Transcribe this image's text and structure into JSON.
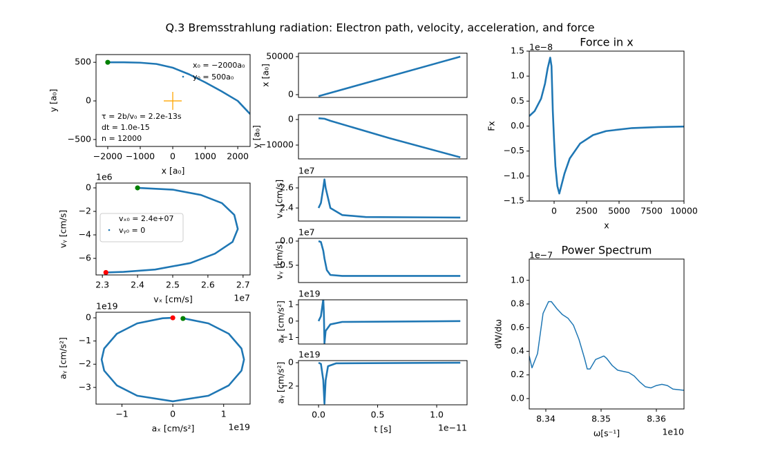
{
  "title": "Q.3 Bremsstrahlung radiation: Electron path, velocity, acceleration, and force",
  "chart_data": [
    {
      "type": "line",
      "xlabel": "x [a₀]",
      "ylabel": "y [a₀]",
      "xlim": [
        -2360,
        2380
      ],
      "ylim": [
        -590,
        600
      ],
      "xticks": [
        {
          "value": -2000,
          "label": "−2000"
        },
        {
          "value": -1000,
          "label": "−1000"
        },
        0,
        1000,
        2000
      ],
      "yticks": [
        {
          "value": -500,
          "label": "−500"
        },
        0,
        500
      ],
      "series": [
        {
          "color": "#1f77b4",
          "x": [
            -2000,
            -1500,
            -1000,
            -500,
            0,
            500,
            1000,
            1500,
            2000,
            2380
          ],
          "y": [
            500,
            500,
            495,
            478,
            430,
            345,
            240,
            125,
            0,
            -170
          ]
        }
      ],
      "points": [
        {
          "color": "#008000",
          "x": -2000,
          "y": 500
        },
        {
          "color": "#ffa500",
          "marker": "plus",
          "x": 0,
          "y": 0
        }
      ],
      "legend": [
        "x₀ = −2000a₀",
        "y₀ = 500a₀"
      ],
      "legend_loc": "upper right",
      "legend_frame": false,
      "annotations": [
        "τ = 2b/v₀ = 2.2e-13s",
        "dt = 1.0e-15",
        "n = 12000"
      ]
    },
    {
      "type": "line",
      "xlabel": "vₓ [cm/s]",
      "ylabel": "vᵧ [cm/s]",
      "x_offset": "1e7",
      "y_offset": "1e6",
      "xlim": [
        2.282,
        2.72
      ],
      "ylim": [
        -7.41,
        0.41
      ],
      "xticks": [
        2.3,
        2.4,
        2.5,
        2.6,
        2.7
      ],
      "yticks": [
        0,
        {
          "value": -2,
          "label": "−2"
        },
        {
          "value": -4,
          "label": "−4"
        },
        {
          "value": -6,
          "label": "−6"
        }
      ],
      "series": [
        {
          "color": "#1f77b4",
          "x": [
            2.4,
            2.5,
            2.58,
            2.64,
            2.675,
            2.685,
            2.67,
            2.62,
            2.55,
            2.45,
            2.36,
            2.31
          ],
          "y": [
            0,
            -0.15,
            -0.6,
            -1.3,
            -2.3,
            -3.5,
            -4.6,
            -5.6,
            -6.4,
            -6.95,
            -7.15,
            -7.2
          ]
        }
      ],
      "points": [
        {
          "color": "#008000",
          "x": 2.4,
          "y": 0
        },
        {
          "color": "#ff0000",
          "x": 2.31,
          "y": -7.2
        }
      ],
      "legend": [
        "vₓ₀ = 2.4e+07",
        "vᵧ₀ = 0"
      ],
      "legend_loc": "center left",
      "legend_frame": true
    },
    {
      "type": "line",
      "xlabel": "aₓ [cm/s²]",
      "ylabel": "aᵧ [cm/s²]",
      "x_offset": "1e19",
      "y_offset": "1e19",
      "xlim": [
        -1.51,
        1.52
      ],
      "ylim": [
        -3.72,
        0.24
      ],
      "xticks": [
        {
          "value": -1,
          "label": "−1"
        },
        0,
        1
      ],
      "yticks": [
        0,
        {
          "value": -1,
          "label": "−1"
        },
        {
          "value": -2,
          "label": "−2"
        },
        {
          "value": -3,
          "label": "−3"
        }
      ],
      "series": [
        {
          "color": "#1f77b4",
          "x": [
            0.2,
            0.7,
            1.1,
            1.35,
            1.4,
            1.35,
            1.1,
            0.7,
            0,
            -0.7,
            -1.1,
            -1.35,
            -1.4,
            -1.35,
            -1.1,
            -0.7,
            -0.2,
            0
          ],
          "y": [
            -0.019,
            -0.241,
            -0.686,
            -1.323,
            -1.8,
            -2.277,
            -2.914,
            -3.359,
            -3.6,
            -3.359,
            -2.914,
            -2.277,
            -1.8,
            -1.323,
            -0.686,
            -0.241,
            -0.019,
            0
          ]
        }
      ],
      "points": [
        {
          "color": "#ff0000",
          "x": 0,
          "y": 0
        },
        {
          "color": "#008000",
          "x": 0.2,
          "y": -0.03
        }
      ]
    },
    {
      "type": "line",
      "ylabel": "x [a₀]",
      "xlim": [
        -0.17,
        1.257
      ],
      "ylim": [
        -3636,
        54545
      ],
      "yticks": [
        0,
        50000
      ],
      "series": [
        {
          "color": "#1f77b4",
          "x": [
            0,
            0.6,
            1.2
          ],
          "y": [
            -2000,
            24000,
            50000
          ]
        }
      ]
    },
    {
      "type": "line",
      "ylabel": "y [a₀]",
      "xlim": [
        -0.17,
        1.257
      ],
      "ylim": [
        -15405,
        1892
      ],
      "yticks": [
        0,
        {
          "value": -10000,
          "label": "−10000"
        }
      ],
      "series": [
        {
          "color": "#1f77b4",
          "x": [
            0,
            0.05,
            0.1,
            0.6,
            1.2
          ],
          "y": [
            500,
            300,
            -500,
            -7300,
            -14800
          ]
        }
      ]
    },
    {
      "type": "line",
      "ylabel": "vₓ [cm/s]",
      "y_offset": "1e7",
      "xlim": [
        -0.17,
        1.257
      ],
      "ylim": [
        2.27,
        2.71
      ],
      "yticks": [
        2.4,
        2.6
      ],
      "series": [
        {
          "color": "#1f77b4",
          "x": [
            0,
            0.02,
            0.04,
            0.05,
            0.06,
            0.1,
            0.2,
            0.4,
            1.2
          ],
          "y": [
            2.4,
            2.45,
            2.6,
            2.685,
            2.6,
            2.4,
            2.33,
            2.31,
            2.305
          ]
        }
      ]
    },
    {
      "type": "line",
      "ylabel": "vᵧ [cm/s]",
      "y_offset": "1e7",
      "xlim": [
        -0.17,
        1.257
      ],
      "ylim": [
        -0.857,
        0.057
      ],
      "yticks": [
        {
          "value": 0,
          "label": "0.0"
        },
        {
          "value": -0.5,
          "label": "−0.5"
        }
      ],
      "series": [
        {
          "color": "#1f77b4",
          "x": [
            0,
            0.02,
            0.04,
            0.05,
            0.07,
            0.1,
            0.2,
            1.2
          ],
          "y": [
            0,
            -0.02,
            -0.2,
            -0.36,
            -0.6,
            -0.7,
            -0.72,
            -0.72
          ]
        }
      ]
    },
    {
      "type": "line",
      "ylabel": "aₓ [cm/s²]",
      "y_offset": "1e19",
      "xlim": [
        -0.17,
        1.257
      ],
      "ylim": [
        -1.4,
        1.3
      ],
      "yticks": [
        {
          "value": -1,
          "label": "−1"
        },
        0,
        1
      ],
      "series": [
        {
          "color": "#1f77b4",
          "x": [
            0,
            0.02,
            0.04,
            0.045,
            0.05,
            0.06,
            0.1,
            0.2,
            1.2
          ],
          "y": [
            0,
            0.3,
            1.35,
            0.5,
            -1.35,
            -0.6,
            -0.2,
            -0.05,
            0
          ]
        }
      ]
    },
    {
      "type": "line",
      "xlabel": "t [s]",
      "ylabel": "aᵧ [cm/s²]",
      "x_offset": "1e−11",
      "y_offset": "1e19",
      "xlim": [
        -0.17,
        1.257
      ],
      "ylim": [
        -3.6,
        0.18
      ],
      "xticks": [
        {
          "value": 0,
          "label": "0.0"
        },
        0.5,
        {
          "value": 1,
          "label": "1.0"
        }
      ],
      "yticks": [
        {
          "value": -2,
          "label": "−2"
        },
        0
      ],
      "series": [
        {
          "color": "#1f77b4",
          "x": [
            0,
            0.02,
            0.04,
            0.05,
            0.06,
            0.08,
            0.15,
            1.2
          ],
          "y": [
            0,
            -0.1,
            -1.5,
            -3.5,
            -1.5,
            -0.3,
            -0.05,
            0
          ]
        }
      ]
    },
    {
      "type": "line",
      "title": "Force in x",
      "xlabel": "x",
      "ylabel": "Fx",
      "y_offset": "1e−8",
      "xlim": [
        -1915,
        10000
      ],
      "ylim": [
        -1.5,
        1.5
      ],
      "xticks": [
        0,
        2500,
        5000,
        7500,
        10000
      ],
      "yticks": [
        {
          "value": -1.5,
          "label": "−1.5"
        },
        {
          "value": -1,
          "label": "−1.0"
        },
        {
          "value": -0.5,
          "label": "−0.5"
        },
        {
          "value": 0,
          "label": "0.0"
        },
        0.5,
        {
          "value": 1,
          "label": "1.0"
        },
        1.5
      ],
      "series": [
        {
          "color": "#1f77b4",
          "x": [
            -1915,
            -1500,
            -1000,
            -700,
            -500,
            -300,
            -200,
            -100,
            0,
            100,
            250,
            400,
            550,
            800,
            1200,
            2000,
            3000,
            4000,
            6000,
            8000,
            10000
          ],
          "y": [
            0.2,
            0.3,
            0.55,
            0.85,
            1.15,
            1.37,
            1.2,
            0.3,
            -0.3,
            -0.8,
            -1.2,
            -1.35,
            -1.2,
            -0.95,
            -0.65,
            -0.35,
            -0.18,
            -0.1,
            -0.04,
            -0.02,
            -0.01
          ]
        }
      ]
    },
    {
      "type": "line",
      "title": "Power Spectrum",
      "xlabel": "ω[s⁻¹]",
      "ylabel": "dW/dω",
      "x_offset": "1e10",
      "y_offset": "1e−7",
      "thin": true,
      "xlim": [
        8.337,
        8.365
      ],
      "ylim": [
        -0.088,
        1.18
      ],
      "xticks": [
        8.34,
        8.35,
        8.36
      ],
      "yticks": [
        {
          "value": 0,
          "label": "0.0"
        },
        0.2,
        0.4,
        0.6,
        0.8,
        {
          "value": 1,
          "label": "1.0"
        }
      ],
      "series": [
        {
          "color": "#1f77b4",
          "x": [
            8.337,
            8.3375,
            8.3385,
            8.3395,
            8.3405,
            8.341,
            8.342,
            8.343,
            8.344,
            8.345,
            8.346,
            8.347,
            8.3475,
            8.348,
            8.349,
            8.35,
            8.3505,
            8.351,
            8.352,
            8.353,
            8.354,
            8.355,
            8.356,
            8.357,
            8.358,
            8.359,
            8.36,
            8.361,
            8.362,
            8.363,
            8.365
          ],
          "y": [
            0.36,
            0.26,
            0.38,
            0.72,
            0.82,
            0.82,
            0.76,
            0.71,
            0.68,
            0.62,
            0.5,
            0.34,
            0.25,
            0.25,
            0.33,
            0.35,
            0.36,
            0.34,
            0.28,
            0.24,
            0.23,
            0.22,
            0.19,
            0.14,
            0.1,
            0.09,
            0.11,
            0.12,
            0.11,
            0.08,
            0.07
          ]
        }
      ]
    }
  ]
}
